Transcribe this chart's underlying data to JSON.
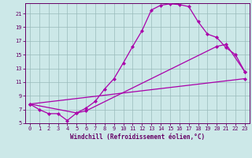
{
  "xlabel": "Windchill (Refroidissement éolien,°C)",
  "bg_color": "#cce8e8",
  "line_color": "#aa00aa",
  "grid_color": "#99bbbb",
  "axis_label_color": "#660066",
  "tick_color": "#660066",
  "spine_color": "#660066",
  "xlim": [
    -0.5,
    23.5
  ],
  "ylim": [
    5,
    22.5
  ],
  "xticks": [
    0,
    1,
    2,
    3,
    4,
    5,
    6,
    7,
    8,
    9,
    10,
    11,
    12,
    13,
    14,
    15,
    16,
    17,
    18,
    19,
    20,
    21,
    22,
    23
  ],
  "yticks": [
    5,
    7,
    9,
    11,
    13,
    15,
    17,
    19,
    21
  ],
  "line1_x": [
    0,
    1,
    2,
    3,
    4,
    5,
    6,
    7,
    8,
    9,
    10,
    11,
    12,
    13,
    14,
    15,
    16,
    17,
    18,
    19,
    20,
    21,
    22,
    23
  ],
  "line1_y": [
    7.8,
    7.0,
    6.4,
    6.4,
    5.4,
    6.5,
    7.2,
    8.2,
    10.0,
    11.5,
    13.8,
    16.2,
    18.5,
    21.5,
    22.2,
    22.4,
    22.3,
    22.0,
    19.8,
    18.0,
    17.5,
    16.0,
    15.0,
    12.5
  ],
  "line2_x": [
    0,
    5,
    6,
    20,
    21,
    23
  ],
  "line2_y": [
    7.8,
    6.5,
    6.8,
    16.2,
    16.5,
    12.5
  ],
  "line3_x": [
    0,
    23
  ],
  "line3_y": [
    7.8,
    11.5
  ],
  "marker": "D",
  "markersize": 2.0,
  "linewidth": 0.9,
  "tick_labelsize": 5.0,
  "xlabel_fontsize": 5.5
}
